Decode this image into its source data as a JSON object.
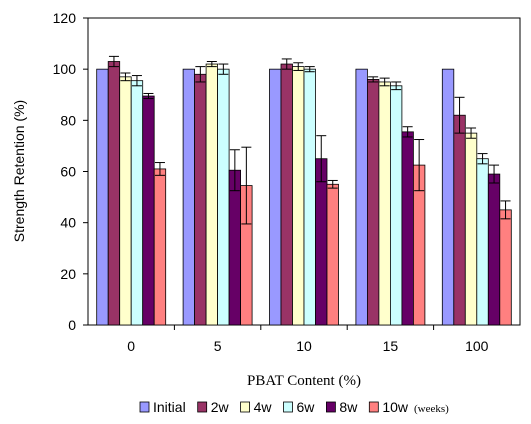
{
  "chart_data": {
    "type": "bar",
    "xlabel": "PBAT Content (%)",
    "ylabel": "Strength Retention (%)",
    "ylim": [
      0,
      120
    ],
    "yticks": [
      0,
      20,
      40,
      60,
      80,
      100,
      120
    ],
    "categories": [
      "0",
      "5",
      "10",
      "15",
      "100"
    ],
    "legend_note": "(weeks)",
    "legend_position": "bottom",
    "grid": false,
    "series": [
      {
        "name": "Initial",
        "color": "#9999ff",
        "values": [
          100,
          100,
          100,
          100,
          100
        ],
        "errors": [
          0,
          0,
          0,
          0,
          0
        ]
      },
      {
        "name": "2w",
        "color": "#993366",
        "values": [
          103,
          98,
          102,
          96,
          82
        ],
        "errors": [
          2,
          3,
          2,
          1,
          7
        ]
      },
      {
        "name": "4w",
        "color": "#ffffcc",
        "values": [
          97,
          102,
          101,
          95,
          75
        ],
        "errors": [
          1.5,
          1,
          1.5,
          1.5,
          2
        ]
      },
      {
        "name": "6w",
        "color": "#ccffff",
        "values": [
          95.5,
          100,
          100,
          93.5,
          65
        ],
        "errors": [
          2,
          2,
          1,
          1.5,
          2
        ]
      },
      {
        "name": "8w",
        "color": "#660066",
        "values": [
          89.5,
          60.5,
          65,
          75.5,
          59
        ],
        "errors": [
          1,
          8,
          9,
          2,
          3.5
        ]
      },
      {
        "name": "10w",
        "color": "#ff8080",
        "values": [
          61,
          54.5,
          55,
          62.5,
          45
        ],
        "errors": [
          2.5,
          15,
          1.5,
          10,
          3.5
        ]
      }
    ]
  }
}
